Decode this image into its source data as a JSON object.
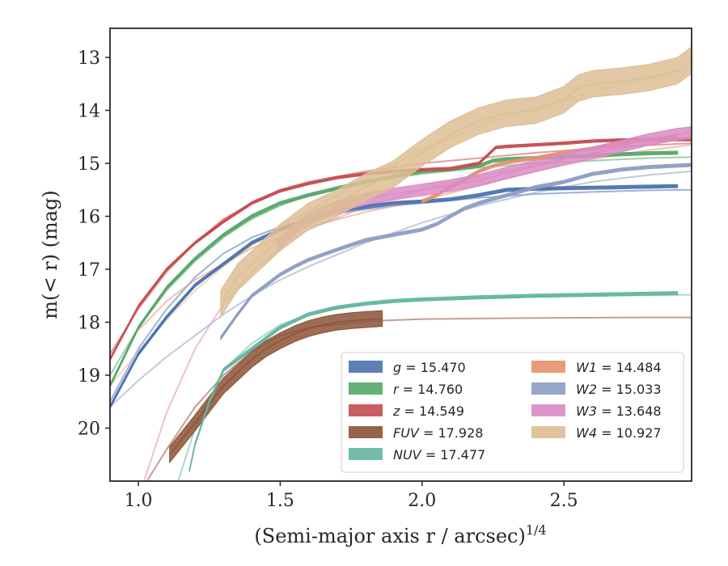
{
  "chart_data": {
    "type": "line",
    "xlabel": "(Semi-major axis r / arcsec)",
    "xlabel_superscript": "1/4",
    "ylabel": "m(< r) (mag)",
    "xlim": [
      0.9,
      2.95
    ],
    "ylim": [
      21.0,
      12.45
    ],
    "y_inverted": true,
    "x_ticks": [
      1.0,
      1.5,
      2.0,
      2.5
    ],
    "x_tick_labels": [
      "1.0",
      "1.5",
      "2.0",
      "2.5"
    ],
    "y_ticks": [
      13,
      14,
      15,
      16,
      17,
      18,
      19,
      20
    ],
    "y_tick_labels": [
      "13",
      "14",
      "15",
      "16",
      "17",
      "18",
      "19",
      "20"
    ],
    "grid": false,
    "legend_position": "lower-right",
    "series": [
      {
        "name": "g",
        "value_label": "15.470",
        "color": "#4c72b0",
        "band": {
          "x": [
            0.9,
            1.0,
            1.1,
            1.2,
            1.3,
            1.4,
            1.5,
            1.6,
            1.7,
            1.8,
            1.9,
            2.0,
            2.1,
            2.2,
            2.3,
            2.4,
            2.5,
            2.6,
            2.7,
            2.8,
            2.9
          ],
          "y": [
            19.6,
            18.6,
            17.9,
            17.3,
            16.9,
            16.5,
            16.25,
            16.05,
            15.9,
            15.82,
            15.75,
            15.72,
            15.68,
            15.6,
            15.5,
            15.48,
            15.47,
            15.46,
            15.45,
            15.44,
            15.43
          ],
          "width": 0.06
        },
        "model": {
          "x": [
            0.9,
            1.0,
            1.1,
            1.2,
            1.3,
            1.4,
            1.5,
            1.6,
            1.7,
            1.8,
            1.9,
            2.0,
            2.2,
            2.4,
            2.6,
            2.8,
            2.95
          ],
          "y": [
            19.5,
            18.5,
            17.75,
            17.15,
            16.7,
            16.4,
            16.2,
            16.05,
            15.95,
            15.87,
            15.8,
            15.75,
            15.65,
            15.58,
            15.54,
            15.51,
            15.5
          ]
        }
      },
      {
        "name": "r",
        "value_label": "14.760",
        "color": "#55a868",
        "band": {
          "x": [
            0.9,
            1.0,
            1.1,
            1.2,
            1.3,
            1.4,
            1.5,
            1.6,
            1.7,
            1.8,
            1.9,
            2.0,
            2.1,
            2.2,
            2.25,
            2.3,
            2.4,
            2.5,
            2.6,
            2.7,
            2.8,
            2.9
          ],
          "y": [
            19.2,
            18.1,
            17.35,
            16.8,
            16.35,
            16.0,
            15.75,
            15.6,
            15.47,
            15.35,
            15.25,
            15.15,
            15.12,
            15.05,
            14.95,
            14.92,
            14.9,
            14.88,
            14.85,
            14.83,
            14.81,
            14.8
          ],
          "width": 0.06
        },
        "model": {
          "x": [
            0.9,
            1.0,
            1.1,
            1.2,
            1.3,
            1.4,
            1.5,
            1.6,
            1.8,
            2.0,
            2.2,
            2.4,
            2.6,
            2.8,
            2.95
          ],
          "y": [
            19.0,
            18.1,
            17.4,
            16.85,
            16.4,
            16.05,
            15.8,
            15.6,
            15.35,
            15.2,
            15.08,
            15.0,
            14.95,
            14.9,
            14.88
          ]
        }
      },
      {
        "name": "z",
        "value_label": "14.549",
        "color": "#c44e52",
        "band": {
          "x": [
            0.9,
            1.0,
            1.1,
            1.2,
            1.3,
            1.4,
            1.5,
            1.6,
            1.7,
            1.8,
            1.9,
            2.0,
            2.1,
            2.2,
            2.23,
            2.26,
            2.3,
            2.4,
            2.5,
            2.6,
            2.7,
            2.8,
            2.95
          ],
          "y": [
            18.7,
            17.7,
            17.0,
            16.5,
            16.1,
            15.75,
            15.52,
            15.38,
            15.27,
            15.2,
            15.15,
            15.12,
            15.1,
            15.0,
            14.85,
            14.7,
            14.68,
            14.65,
            14.62,
            14.58,
            14.56,
            14.55,
            14.55
          ],
          "width": 0.05
        },
        "model": {
          "x": [
            0.9,
            1.0,
            1.1,
            1.2,
            1.3,
            1.4,
            1.5,
            1.6,
            1.8,
            2.0,
            2.2,
            2.4,
            2.6,
            2.8,
            2.95
          ],
          "y": [
            18.6,
            17.75,
            17.05,
            16.5,
            16.05,
            15.75,
            15.5,
            15.35,
            15.15,
            15.0,
            14.9,
            14.8,
            14.72,
            14.66,
            14.62
          ]
        }
      },
      {
        "name": "FUV",
        "value_label": "17.928",
        "color": "#8c5236",
        "band": {
          "x": [
            1.11,
            1.2,
            1.3,
            1.4,
            1.45,
            1.5,
            1.55,
            1.6,
            1.65,
            1.7,
            1.75,
            1.8,
            1.86
          ],
          "y": [
            20.5,
            19.9,
            19.2,
            18.7,
            18.5,
            18.35,
            18.22,
            18.12,
            18.05,
            18.0,
            17.97,
            17.95,
            17.93
          ],
          "width": 0.3
        },
        "model": {
          "x": [
            1.03,
            1.1,
            1.2,
            1.3,
            1.4,
            1.5,
            1.6,
            1.8,
            2.0,
            2.4,
            2.8,
            2.95
          ],
          "y": [
            21.0,
            20.4,
            19.6,
            19.0,
            18.55,
            18.25,
            18.1,
            17.98,
            17.94,
            17.92,
            17.91,
            17.91
          ]
        }
      },
      {
        "name": "NUV",
        "value_label": "17.477",
        "color": "#64b5a0",
        "band": {
          "x": [
            1.18,
            1.2,
            1.25,
            1.3,
            1.4,
            1.5,
            1.6,
            1.7,
            1.8,
            1.9,
            2.0,
            2.2,
            2.4,
            2.6,
            2.8,
            2.9
          ],
          "y": [
            20.8,
            20.3,
            19.5,
            18.9,
            18.5,
            18.1,
            17.85,
            17.72,
            17.65,
            17.6,
            17.57,
            17.53,
            17.5,
            17.48,
            17.46,
            17.45
          ],
          "width": 0.06
        },
        "model": {
          "x": [
            1.14,
            1.2,
            1.3,
            1.4,
            1.5,
            1.6,
            1.8,
            2.0,
            2.4,
            2.8,
            2.95
          ],
          "y": [
            21.0,
            20.0,
            18.9,
            18.4,
            18.05,
            17.85,
            17.65,
            17.58,
            17.52,
            17.49,
            17.48
          ]
        }
      },
      {
        "name": "W1",
        "value_label": "14.484",
        "color": "#e8906d",
        "band": {
          "x": [
            2.0,
            2.05,
            2.1,
            2.15,
            2.2,
            2.25,
            2.3,
            2.4,
            2.5,
            2.6,
            2.7,
            2.8,
            2.9
          ],
          "y": [
            15.72,
            15.6,
            15.45,
            15.3,
            15.15,
            15.05,
            14.98,
            14.9,
            14.8,
            14.72,
            14.62,
            14.55,
            14.5
          ],
          "width": 0.06
        },
        "model": {
          "x": [
            1.0,
            1.1,
            1.2,
            1.3,
            1.4,
            1.5,
            1.6,
            1.8,
            2.0,
            2.2,
            2.4,
            2.6,
            2.8,
            2.95
          ],
          "y": [
            18.15,
            17.6,
            17.2,
            16.9,
            16.6,
            16.4,
            16.2,
            15.92,
            15.7,
            15.42,
            15.15,
            14.92,
            14.75,
            14.65
          ]
        }
      },
      {
        "name": "W2",
        "value_label": "15.033",
        "color": "#8c9dc2",
        "band": {
          "x": [
            1.29,
            1.35,
            1.4,
            1.5,
            1.55,
            1.6,
            1.7,
            1.8,
            1.9,
            2.0,
            2.05,
            2.1,
            2.15,
            2.2,
            2.3,
            2.4,
            2.5,
            2.6,
            2.7,
            2.8,
            2.95
          ],
          "y": [
            18.3,
            17.85,
            17.5,
            17.1,
            16.95,
            16.82,
            16.63,
            16.45,
            16.35,
            16.25,
            16.15,
            16.0,
            15.85,
            15.75,
            15.6,
            15.45,
            15.35,
            15.2,
            15.12,
            15.07,
            15.03
          ],
          "width": 0.06
        },
        "model": {
          "x": [
            0.9,
            1.0,
            1.1,
            1.2,
            1.3,
            1.4,
            1.5,
            1.6,
            1.8,
            2.0,
            2.2,
            2.4,
            2.6,
            2.8,
            2.95
          ],
          "y": [
            19.6,
            19.1,
            18.65,
            18.25,
            17.85,
            17.5,
            17.2,
            16.95,
            16.5,
            16.12,
            15.8,
            15.55,
            15.35,
            15.22,
            15.15
          ]
        }
      },
      {
        "name": "W3",
        "value_label": "13.648",
        "color": "#da8bc3",
        "band": {
          "x": [
            1.49,
            1.55,
            1.6,
            1.7,
            1.8,
            1.9,
            2.0,
            2.1,
            2.2,
            2.3,
            2.4,
            2.5,
            2.6,
            2.7,
            2.8,
            2.9,
            2.95
          ],
          "y": [
            16.55,
            16.25,
            16.05,
            15.82,
            15.67,
            15.58,
            15.5,
            15.42,
            15.32,
            15.18,
            15.05,
            14.92,
            14.8,
            14.68,
            14.55,
            14.45,
            14.42
          ],
          "width": 0.22
        },
        "model": {
          "x": [
            1.02,
            1.1,
            1.2,
            1.3,
            1.4,
            1.5,
            1.6,
            1.8,
            2.0,
            2.2,
            2.4,
            2.6,
            2.8,
            2.95
          ],
          "y": [
            21.0,
            19.7,
            18.5,
            17.65,
            17.05,
            16.6,
            16.25,
            15.82,
            15.5,
            15.25,
            15.02,
            14.82,
            14.62,
            14.5
          ]
        }
      },
      {
        "name": "W4",
        "value_label": "10.927",
        "color": "#ddbe94",
        "band": {
          "x": [
            1.29,
            1.35,
            1.4,
            1.5,
            1.6,
            1.7,
            1.8,
            1.9,
            2.0,
            2.1,
            2.2,
            2.3,
            2.4,
            2.5,
            2.55,
            2.6,
            2.7,
            2.8,
            2.9,
            2.95
          ],
          "y": [
            17.65,
            17.15,
            16.9,
            16.4,
            16.0,
            15.75,
            15.45,
            15.2,
            14.8,
            14.45,
            14.2,
            14.05,
            14.0,
            13.8,
            13.58,
            13.5,
            13.45,
            13.38,
            13.25,
            13.05
          ],
          "width": 0.5
        },
        "model": {
          "x": [
            0.9,
            1.0,
            1.1,
            1.2,
            1.3,
            1.4,
            1.5,
            1.6,
            1.8,
            2.0,
            2.2,
            2.4,
            2.6,
            2.8,
            2.95
          ],
          "y": [
            19.2,
            18.55,
            17.95,
            17.4,
            16.95,
            16.55,
            16.2,
            15.9,
            15.3,
            14.75,
            14.3,
            13.95,
            13.65,
            13.4,
            13.2
          ]
        }
      }
    ]
  }
}
